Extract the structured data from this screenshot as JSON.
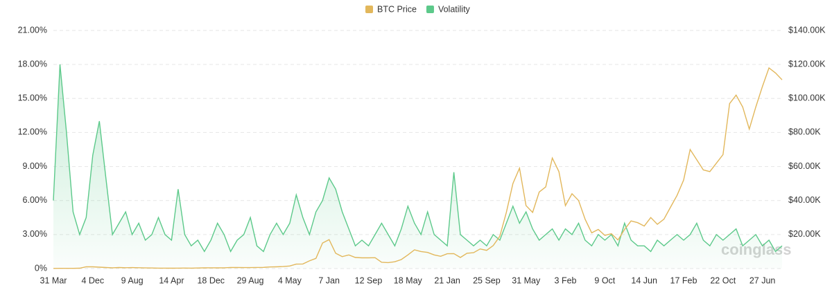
{
  "chart_data": {
    "type": "line",
    "watermark": "coinglass",
    "categories": [
      "31 Mar",
      null,
      null,
      null,
      null,
      null,
      "4 Dec",
      null,
      null,
      null,
      null,
      null,
      "9 Aug",
      null,
      null,
      null,
      null,
      null,
      "14 Apr",
      null,
      null,
      null,
      null,
      null,
      "18 Dec",
      null,
      null,
      null,
      null,
      null,
      "29 Aug",
      null,
      null,
      null,
      null,
      null,
      "4 May",
      null,
      null,
      null,
      null,
      null,
      "7 Jan",
      null,
      null,
      null,
      null,
      null,
      "12 Sep",
      null,
      null,
      null,
      null,
      null,
      "18 May",
      null,
      null,
      null,
      null,
      null,
      "21 Jan",
      null,
      null,
      null,
      null,
      null,
      "25 Sep",
      null,
      null,
      null,
      null,
      null,
      "31 May",
      null,
      null,
      null,
      null,
      null,
      "3 Feb",
      null,
      null,
      null,
      null,
      null,
      "9 Oct",
      null,
      null,
      null,
      null,
      null,
      "14 Jun",
      null,
      null,
      null,
      null,
      null,
      "17 Feb",
      null,
      null,
      null,
      null,
      null,
      "22 Oct",
      null,
      null,
      null,
      null,
      null,
      "27 Jun",
      null,
      null,
      null
    ],
    "series": [
      {
        "name": "BTC Price",
        "color": "#e2b75b",
        "axis": "y2",
        "values": [
          93,
          140,
          110,
          130,
          200,
          1000,
          1000,
          800,
          600,
          450,
          630,
          480,
          590,
          480,
          380,
          330,
          250,
          240,
          220,
          240,
          280,
          230,
          320,
          400,
          450,
          400,
          430,
          670,
          620,
          590,
          575,
          650,
          700,
          950,
          1000,
          1200,
          1500,
          2600,
          2700,
          4500,
          6000,
          15000,
          17000,
          9000,
          7000,
          8000,
          6500,
          6300,
          6300,
          6400,
          3700,
          3500,
          4000,
          5300,
          8000,
          11000,
          10000,
          9500,
          8000,
          7200,
          8700,
          8800,
          6500,
          9000,
          9300,
          11500,
          10700,
          13500,
          19000,
          33000,
          50000,
          59000,
          37000,
          33000,
          45000,
          48000,
          65000,
          57000,
          37000,
          44000,
          40000,
          29000,
          21000,
          23000,
          19500,
          20500,
          16800,
          23000,
          28000,
          27000,
          25000,
          30000,
          26000,
          29000,
          36000,
          43000,
          52000,
          70000,
          64000,
          58000,
          57000,
          62000,
          67000,
          97000,
          102000,
          95000,
          82000,
          95000,
          107000,
          118000,
          115000,
          111000
        ]
      },
      {
        "name": "Volatility",
        "color": "#5cc98a",
        "values": [
          6,
          18,
          12,
          5,
          3,
          4.5,
          10,
          13,
          8,
          3,
          4,
          5,
          3,
          4,
          2.5,
          3,
          4.5,
          3,
          2.5,
          7,
          3,
          2,
          2.5,
          1.5,
          2.5,
          4,
          3,
          1.5,
          2.5,
          3,
          4.5,
          2,
          1.5,
          3,
          4,
          3,
          4,
          6.5,
          4.5,
          3,
          5,
          6,
          8,
          7,
          5,
          3.5,
          2,
          2.5,
          2,
          3,
          4,
          3,
          2,
          3.5,
          5.5,
          4,
          3,
          5,
          3,
          2.5,
          2,
          8.5,
          3,
          2.5,
          2,
          2.5,
          2,
          3,
          2.5,
          4,
          5.5,
          4,
          5,
          3.5,
          2.5,
          3,
          3.5,
          2.5,
          3.5,
          3,
          4,
          2.5,
          2,
          3,
          2.5,
          3,
          2,
          4,
          2.5,
          2,
          2,
          1.5,
          2.5,
          2,
          2.5,
          3,
          2.5,
          3,
          4,
          2.5,
          2,
          3,
          2.5,
          3,
          3.5,
          2,
          2.5,
          3,
          2,
          2.5,
          1.5,
          2
        ]
      }
    ],
    "ylim": [
      0,
      21
    ],
    "yticks": [
      {
        "value": 0,
        "label": "0%"
      },
      {
        "value": 3,
        "label": "3.00%"
      },
      {
        "value": 6,
        "label": "6.00%"
      },
      {
        "value": 9,
        "label": "9.00%"
      },
      {
        "value": 12,
        "label": "12.00%"
      },
      {
        "value": 15,
        "label": "15.00%"
      },
      {
        "value": 18,
        "label": "18.00%"
      },
      {
        "value": 21,
        "label": "21.00%"
      }
    ],
    "y2lim": [
      0,
      140000
    ],
    "y2ticks": [
      {
        "value": 20000,
        "label": "$20.00K"
      },
      {
        "value": 40000,
        "label": "$40.00K"
      },
      {
        "value": 60000,
        "label": "$60.00K"
      },
      {
        "value": 80000,
        "label": "$80.00K"
      },
      {
        "value": 100000,
        "label": "$100.00K"
      },
      {
        "value": 120000,
        "label": "$120.00K"
      },
      {
        "value": 140000,
        "label": "$140.00K"
      }
    ],
    "grid": true,
    "legend": "top"
  }
}
